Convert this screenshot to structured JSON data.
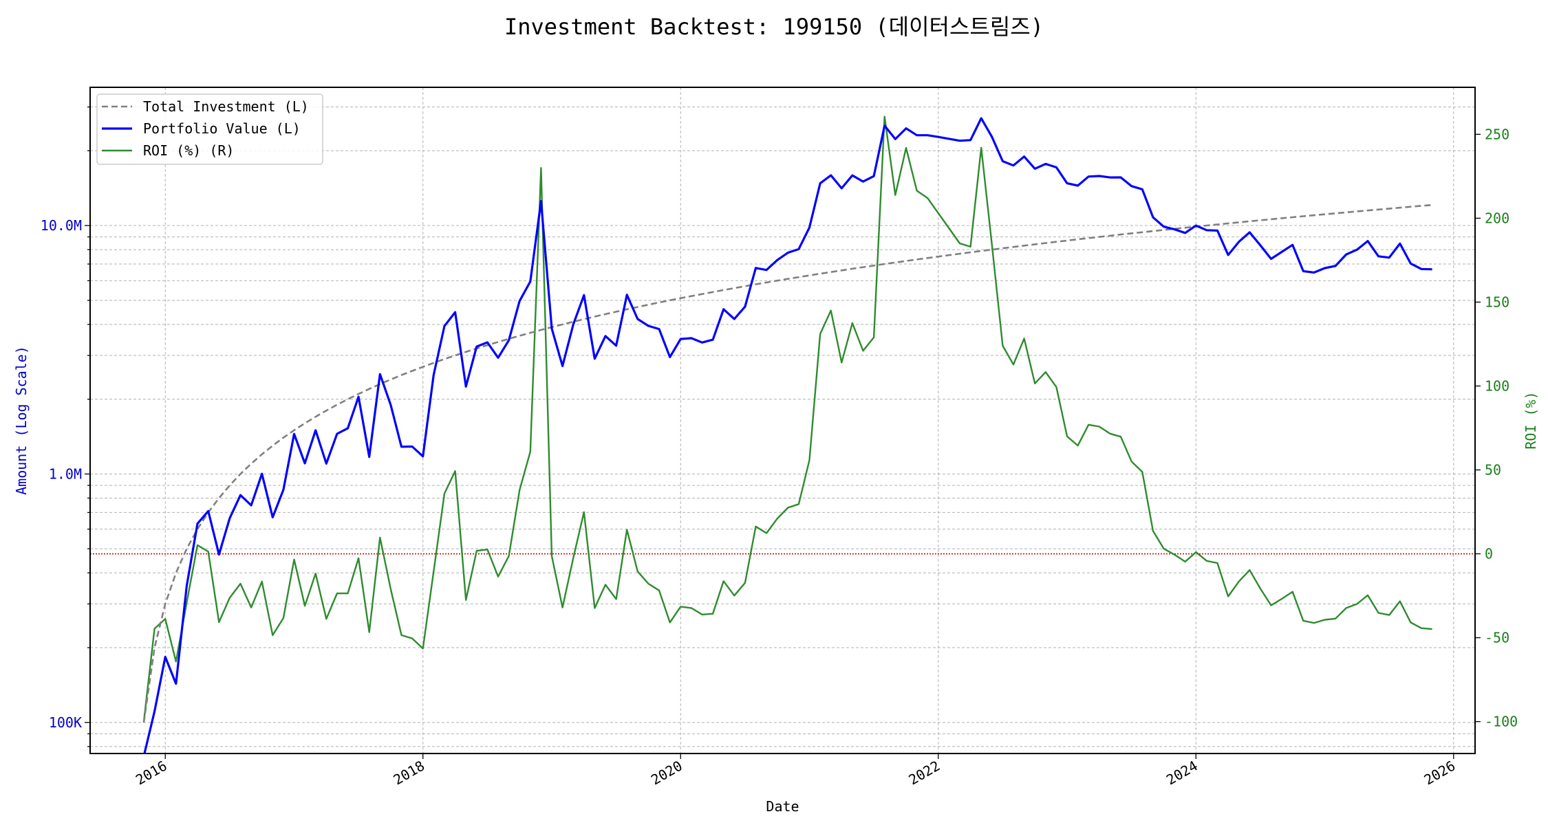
{
  "chart_data": {
    "type": "line",
    "title": "Investment Backtest: 199150 (데이터스트림즈)",
    "xlabel": "Date",
    "ylabel_left": "Amount (Log Scale)",
    "ylabel_right": "ROI (%)",
    "x_ticks": [
      "2016",
      "2018",
      "2020",
      "2022",
      "2024",
      "2026"
    ],
    "y_left_scale": "log",
    "y_left_range": [
      75000,
      36000000
    ],
    "y_left_ticks": [
      {
        "value": 100000,
        "label": "100K"
      },
      {
        "value": 1000000,
        "label": "1.0M"
      },
      {
        "value": 10000000,
        "label": "10.0M"
      }
    ],
    "y_right_range": [
      -119,
      278
    ],
    "y_right_ticks": [
      "-100",
      "-50",
      "0",
      "50",
      "100",
      "150",
      "200",
      "250"
    ],
    "x_range": [
      "2015-06",
      "2026-03"
    ],
    "grid": true,
    "legend_position": "top-left",
    "reference_line": {
      "axis": "right",
      "value": 0,
      "color": "#e00000",
      "style": "dotted"
    },
    "colors": {
      "total_investment": "#808080",
      "portfolio_value": "#0000ff",
      "roi": "#2e8b2e",
      "left_axis": "#0000cc",
      "right_axis": "#1a7f1a"
    },
    "dates": [
      "2015-11",
      "2015-12",
      "2016-01",
      "2016-02",
      "2016-03",
      "2016-04",
      "2016-05",
      "2016-06",
      "2016-07",
      "2016-08",
      "2016-09",
      "2016-10",
      "2016-11",
      "2016-12",
      "2017-01",
      "2017-02",
      "2017-03",
      "2017-04",
      "2017-05",
      "2017-06",
      "2017-07",
      "2017-08",
      "2017-09",
      "2017-10",
      "2017-11",
      "2017-12",
      "2018-01",
      "2018-02",
      "2018-03",
      "2018-04",
      "2018-05",
      "2018-06",
      "2018-07",
      "2018-08",
      "2018-09",
      "2018-10",
      "2018-11",
      "2018-12",
      "2019-01",
      "2019-02",
      "2019-03",
      "2019-04",
      "2019-05",
      "2019-06",
      "2019-07",
      "2019-08",
      "2019-09",
      "2019-10",
      "2019-11",
      "2019-12",
      "2020-01",
      "2020-02",
      "2020-03",
      "2020-04",
      "2020-05",
      "2020-06",
      "2020-07",
      "2020-08",
      "2020-09",
      "2020-10",
      "2020-11",
      "2020-12",
      "2021-01",
      "2021-02",
      "2021-03",
      "2021-04",
      "2021-05",
      "2021-06",
      "2021-07",
      "2021-08",
      "2021-09",
      "2021-10",
      "2021-11",
      "2021-12",
      "2022-01",
      "2022-02",
      "2022-03",
      "2022-04",
      "2022-05",
      "2022-06",
      "2022-07",
      "2022-08",
      "2022-09",
      "2022-10",
      "2022-11",
      "2022-12",
      "2023-01",
      "2023-02",
      "2023-03",
      "2023-04",
      "2023-05",
      "2023-06",
      "2023-07",
      "2023-08",
      "2023-09",
      "2023-10",
      "2023-11",
      "2023-12",
      "2024-01",
      "2024-02",
      "2024-03",
      "2024-04",
      "2024-05",
      "2024-06",
      "2024-07",
      "2024-08",
      "2024-09",
      "2024-10",
      "2024-11",
      "2024-12",
      "2025-01",
      "2025-02",
      "2025-03",
      "2025-04",
      "2025-05",
      "2025-06",
      "2025-07",
      "2025-08",
      "2025-09",
      "2025-10",
      "2025-11"
    ],
    "series": [
      {
        "name": "Total Investment (L)",
        "axis": "left",
        "style": "dashed",
        "values": [
          100000,
          200000,
          300000,
          400000,
          500000,
          600000,
          700000,
          800000,
          900000,
          1000000,
          1100000,
          1200000,
          1300000,
          1400000,
          1500000,
          1600000,
          1700000,
          1800000,
          1900000,
          2000000,
          2100000,
          2200000,
          2300000,
          2400000,
          2500000,
          2600000,
          2700000,
          2800000,
          2900000,
          3000000,
          3100000,
          3200000,
          3300000,
          3400000,
          3500000,
          3600000,
          3700000,
          3800000,
          3900000,
          4000000,
          4100000,
          4200000,
          4300000,
          4400000,
          4500000,
          4600000,
          4700000,
          4800000,
          4900000,
          5000000,
          5100000,
          5200000,
          5300000,
          5400000,
          5500000,
          5600000,
          5700000,
          5800000,
          5900000,
          6000000,
          6100000,
          6200000,
          6300000,
          6400000,
          6500000,
          6600000,
          6700000,
          6800000,
          6900000,
          7000000,
          7100000,
          7200000,
          7300000,
          7400000,
          7500000,
          7600000,
          7700000,
          7800000,
          7900000,
          8000000,
          8100000,
          8200000,
          8300000,
          8400000,
          8500000,
          8600000,
          8700000,
          8800000,
          8900000,
          9000000,
          9100000,
          9200000,
          9300000,
          9400000,
          9500000,
          9600000,
          9700000,
          9800000,
          9900000,
          10000000,
          10100000,
          10200000,
          10300000,
          10400000,
          10500000,
          10600000,
          10700000,
          10800000,
          10900000,
          11000000,
          11100000,
          11200000,
          11300000,
          11400000,
          11500000,
          11600000,
          11700000,
          11800000,
          11900000,
          12000000,
          12100000
        ]
      },
      {
        "name": "Portfolio Value (L)",
        "axis": "left",
        "style": "solid",
        "values": [
          0,
          110800,
          183600,
          143200,
          355000,
          631200,
          709100,
          474400,
          664200,
          822000,
          748000,
          1002000,
          669500,
          863800,
          1449000,
          1104000,
          1499400,
          1101600,
          1451600,
          1528000,
          2045400,
          1172600,
          2523100,
          1896000,
          1287500,
          1289600,
          1177200,
          2506000,
          3941100,
          4479000,
          2247500,
          3257600,
          3385800,
          2937600,
          3454500,
          4968000,
          5953300,
          12540000,
          3849300,
          2720000,
          3993400,
          5245800,
          2911100,
          3590400,
          3285000,
          5262400,
          4206500,
          3945600,
          3831800,
          2955000,
          3493500,
          3520400,
          3381400,
          3472200,
          4603500,
          4205600,
          4713900,
          6745400,
          6625700,
          7260000,
          7777500,
          8035200,
          9821700,
          14784000,
          15925000,
          14124000,
          15912500,
          15028000,
          15801000,
          25235000,
          22279800,
          24616800,
          23097200,
          23088000,
          22725000,
          22344000,
          21945000,
          22074000,
          27018000,
          22720000,
          18144000,
          17449600,
          18948900,
          16926000,
          17705500,
          17148400,
          14790000,
          14476000,
          15744100,
          15822000,
          15615600,
          15621600,
          14415000,
          13987200,
          10792000,
          9897600,
          9651500,
          9339400,
          9999000,
          9580000,
          9544500,
          7609200,
          8600500,
          9391200,
          8326500,
          7345800,
          7832400,
          8359200,
          6550900,
          6468000,
          6737700,
          6876800,
          7650100,
          7991400,
          8659500,
          7516800,
          7429500,
          8460600,
          7032900,
          6684000,
          6667100
        ]
      },
      {
        "name": "ROI (%) (R)",
        "axis": "right",
        "style": "solid",
        "values": [
          -100,
          -44.6,
          -38.8,
          -64.2,
          -29,
          5.2,
          1.3,
          -40.7,
          -26.2,
          -17.8,
          -32,
          -16.5,
          -48.5,
          -38.3,
          -3.4,
          -31,
          -11.8,
          -38.8,
          -23.6,
          -23.6,
          -2.6,
          -46.7,
          9.7,
          -21,
          -48.5,
          -50.4,
          -56.4,
          -10.5,
          35.9,
          49.3,
          -27.5,
          1.8,
          2.6,
          -13.6,
          -1.3,
          38,
          60.9,
          230,
          -1.3,
          -32,
          -2.6,
          24.9,
          -32.3,
          -18.4,
          -27,
          14.4,
          -10.5,
          -17.8,
          -21.8,
          -40.9,
          -31.5,
          -32.3,
          -36.2,
          -35.7,
          -16.3,
          -24.9,
          -17.3,
          16.3,
          12.3,
          21,
          27.5,
          29.6,
          55.9,
          131,
          145,
          114,
          137.5,
          121,
          129,
          260.5,
          213.8,
          241.9,
          216.4,
          212,
          203,
          194,
          185,
          183,
          242,
          184,
          124,
          112.8,
          128.3,
          101.5,
          108.3,
          99.4,
          70,
          64.5,
          76.9,
          75.8,
          71.6,
          69.8,
          55,
          48.8,
          13.6,
          3.1,
          -0.5,
          -4.7,
          1,
          -4.2,
          -5.5,
          -25.4,
          -16.5,
          -9.7,
          -20.7,
          -30.7,
          -26.8,
          -22.6,
          -39.9,
          -41.2,
          -39.3,
          -38.6,
          -32.3,
          -29.9,
          -24.7,
          -35.2,
          -36.5,
          -28.3,
          -40.9,
          -44.3,
          -44.9
        ]
      }
    ]
  }
}
